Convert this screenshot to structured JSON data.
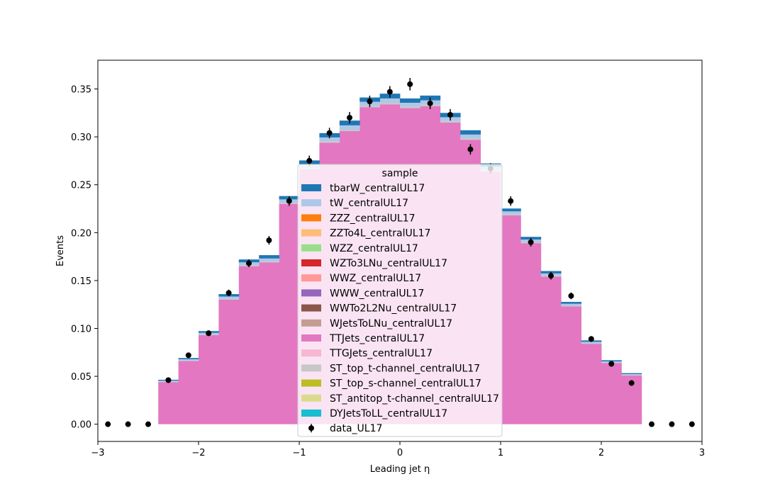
{
  "chart_data": {
    "type": "bar",
    "stacked": true,
    "histogram": true,
    "xlabel": "Leading jet  η",
    "ylabel": "Events",
    "xlim": [
      -3,
      3
    ],
    "ylim": [
      -0.018,
      0.38
    ],
    "xticks": [
      -3,
      -2,
      -1,
      0,
      1,
      2,
      3
    ],
    "xtick_labels": [
      "−3",
      "−2",
      "−1",
      "0",
      "1",
      "2",
      "3"
    ],
    "yticks": [
      0.0,
      0.05,
      0.1,
      0.15,
      0.2,
      0.25,
      0.3,
      0.35
    ],
    "ytick_labels": [
      "0.00",
      "0.05",
      "0.10",
      "0.15",
      "0.20",
      "0.25",
      "0.30",
      "0.35"
    ],
    "grid": false,
    "legend": {
      "title": "sample",
      "placement": "lower-center"
    },
    "bin_edges": [
      -3.0,
      -2.8,
      -2.6,
      -2.4,
      -2.2,
      -2.0,
      -1.8,
      -1.6,
      -1.4,
      -1.2,
      -1.0,
      -0.8,
      -0.6,
      -0.4,
      -0.2,
      0.0,
      0.2,
      0.4,
      0.6,
      0.8,
      1.0,
      1.2,
      1.4,
      1.6,
      1.8,
      2.0,
      2.2,
      2.4,
      2.6,
      2.8,
      3.0
    ],
    "series": [
      {
        "name": "TTJets_centralUL17",
        "color": "#e377c2",
        "values": [
          0,
          0,
          0,
          0.044,
          0.066,
          0.093,
          0.13,
          0.165,
          0.169,
          0.23,
          0.266,
          0.294,
          0.306,
          0.331,
          0.334,
          0.33,
          0.332,
          0.315,
          0.297,
          0.264,
          0.218,
          0.189,
          0.154,
          0.123,
          0.084,
          0.064,
          0.051,
          0,
          0,
          0
        ]
      },
      {
        "name": "ST_top_t-channel_centralUL17",
        "color": "#c7c7c7",
        "values": [
          0,
          0,
          0,
          0.0004,
          0.0005,
          0.0006,
          0.0008,
          0.001,
          0.001,
          0.0012,
          0.0014,
          0.0014,
          0.0015,
          0.0016,
          0.0016,
          0.0016,
          0.0016,
          0.0015,
          0.0014,
          0.0013,
          0.0012,
          0.001,
          0.0009,
          0.0007,
          0.0005,
          0.0004,
          0.0003,
          0,
          0,
          0
        ]
      },
      {
        "name": "tW_centralUL17",
        "color": "#aec7e8",
        "values": [
          0,
          0,
          0,
          0.001,
          0.0013,
          0.0018,
          0.0025,
          0.003,
          0.003,
          0.0035,
          0.004,
          0.004,
          0.0045,
          0.004,
          0.0045,
          0.004,
          0.0045,
          0.004,
          0.004,
          0.0035,
          0.003,
          0.0028,
          0.0025,
          0.002,
          0.0015,
          0.0012,
          0.001,
          0,
          0,
          0
        ]
      },
      {
        "name": "tbarW_centralUL17",
        "color": "#1f77b4",
        "values": [
          0,
          0,
          0,
          0.001,
          0.0013,
          0.0018,
          0.0025,
          0.003,
          0.0035,
          0.0035,
          0.004,
          0.0045,
          0.005,
          0.0045,
          0.005,
          0.0045,
          0.005,
          0.0045,
          0.0045,
          0.0035,
          0.003,
          0.0028,
          0.0025,
          0.002,
          0.0015,
          0.0012,
          0.001,
          0,
          0,
          0
        ]
      }
    ],
    "other_samples": [
      {
        "name": "ZZZ_centralUL17",
        "color": "#ff7f0e"
      },
      {
        "name": "ZZTo4L_centralUL17",
        "color": "#ffbb78"
      },
      {
        "name": "WZZ_centralUL17",
        "color": "#98df8a"
      },
      {
        "name": "WZTo3LNu_centralUL17",
        "color": "#d62728"
      },
      {
        "name": "WWZ_centralUL17",
        "color": "#ff9896"
      },
      {
        "name": "WWW_centralUL17",
        "color": "#9467bd"
      },
      {
        "name": "WWTo2L2Nu_centralUL17",
        "color": "#8c564b"
      },
      {
        "name": "WJetsToLNu_centralUL17",
        "color": "#c49c94"
      },
      {
        "name": "TTGJets_centralUL17",
        "color": "#f7b6d2"
      },
      {
        "name": "ST_top_s-channel_centralUL17",
        "color": "#bcbd22"
      },
      {
        "name": "ST_antitop_t-channel_centralUL17",
        "color": "#dbdb8d"
      },
      {
        "name": "DYJetsToLL_centralUL17",
        "color": "#17becf"
      }
    ],
    "data": {
      "name": "data_UL17",
      "color": "#000000",
      "x": [
        -2.9,
        -2.7,
        -2.5,
        -2.3,
        -2.1,
        -1.9,
        -1.7,
        -1.5,
        -1.3,
        -1.1,
        -0.9,
        -0.7,
        -0.5,
        -0.3,
        -0.1,
        0.1,
        0.3,
        0.5,
        0.7,
        0.9,
        1.1,
        1.3,
        1.5,
        1.7,
        1.9,
        2.1,
        2.3,
        2.5,
        2.7,
        2.9
      ],
      "y": [
        0,
        0,
        0,
        0.046,
        0.072,
        0.095,
        0.137,
        0.168,
        0.192,
        0.233,
        0.275,
        0.304,
        0.32,
        0.337,
        0.347,
        0.355,
        0.335,
        0.323,
        0.287,
        0.267,
        0.233,
        0.19,
        0.155,
        0.134,
        0.089,
        0.063,
        0.043,
        0,
        0,
        0
      ],
      "yerr": [
        0,
        0,
        0,
        0.002,
        0.0025,
        0.003,
        0.0035,
        0.004,
        0.0045,
        0.005,
        0.0055,
        0.0055,
        0.006,
        0.006,
        0.006,
        0.0065,
        0.006,
        0.006,
        0.0055,
        0.0055,
        0.005,
        0.0045,
        0.004,
        0.0035,
        0.003,
        0.0025,
        0.002,
        0,
        0,
        0
      ]
    },
    "legend_order": [
      "tbarW_centralUL17",
      "tW_centralUL17",
      "ZZZ_centralUL17",
      "ZZTo4L_centralUL17",
      "WZZ_centralUL17",
      "WZTo3LNu_centralUL17",
      "WWZ_centralUL17",
      "WWW_centralUL17",
      "WWTo2L2Nu_centralUL17",
      "WJetsToLNu_centralUL17",
      "TTJets_centralUL17",
      "TTGJets_centralUL17",
      "ST_top_t-channel_centralUL17",
      "ST_top_s-channel_centralUL17",
      "ST_antitop_t-channel_centralUL17",
      "DYJetsToLL_centralUL17",
      "data_UL17"
    ]
  }
}
